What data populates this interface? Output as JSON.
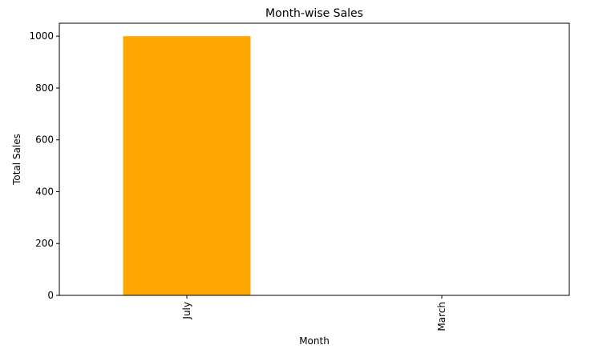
{
  "chart_data": {
    "type": "bar",
    "title": "Month-wise Sales",
    "xlabel": "Month",
    "ylabel": "Total Sales",
    "categories": [
      "July",
      "March"
    ],
    "values": [
      1000,
      0
    ],
    "ylim": [
      0,
      1050
    ],
    "yticks": [
      0,
      200,
      400,
      600,
      800,
      1000
    ],
    "bar_color": "#ffa500",
    "grid": false,
    "legend": "none"
  }
}
